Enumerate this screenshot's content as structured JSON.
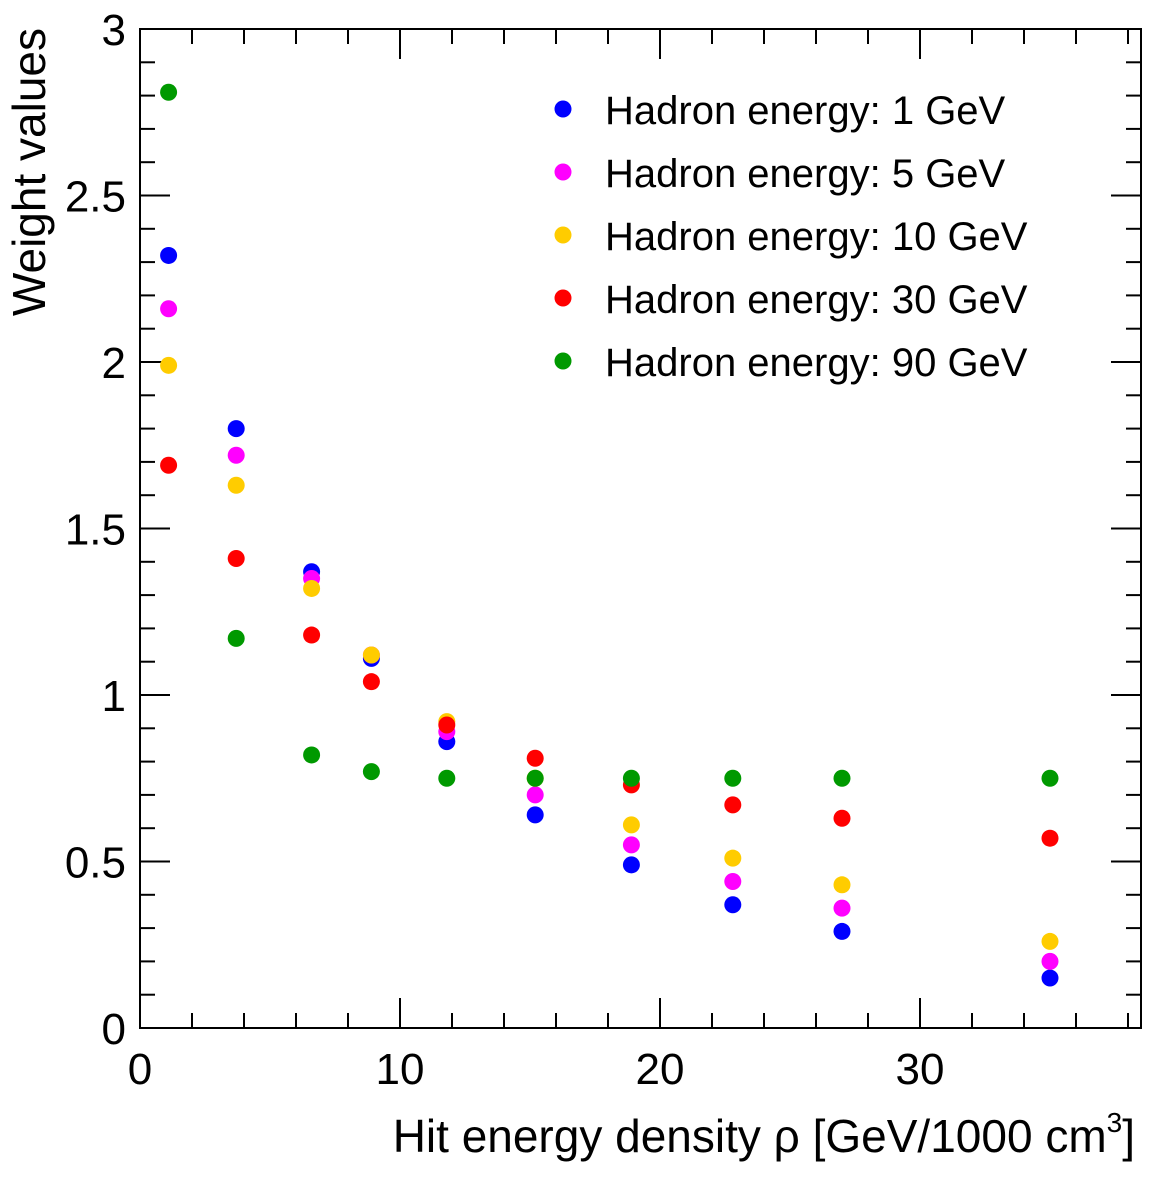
{
  "chart_data": {
    "type": "scatter",
    "title": "",
    "xlabel": "Hit energy density ρ [GeV/1000 cm",
    "xlabel_superscript": "3",
    "xlabel_suffix": "]",
    "ylabel": "Weight values",
    "xlim": [
      0,
      38.5
    ],
    "ylim": [
      0,
      3
    ],
    "x_major_ticks": [
      0,
      10,
      20,
      30
    ],
    "x_tick_labels": [
      "0",
      "10",
      "20",
      "30"
    ],
    "x_minor_step": 2,
    "y_major_ticks": [
      0,
      0.5,
      1,
      1.5,
      2,
      2.5,
      3
    ],
    "y_tick_labels": [
      "0",
      "0.5",
      "1",
      "1.5",
      "2",
      "2.5",
      "3"
    ],
    "y_minor_step": 0.1,
    "grid": false,
    "legend_position": "top-right",
    "x": [
      1.1,
      3.7,
      6.6,
      8.9,
      11.8,
      15.2,
      18.9,
      22.8,
      27.0,
      35.0
    ],
    "series": [
      {
        "name": "Hadron energy: 1 GeV",
        "color": "#0000ff",
        "values": [
          2.32,
          1.8,
          1.37,
          1.11,
          0.86,
          0.64,
          0.49,
          0.37,
          0.29,
          0.15
        ]
      },
      {
        "name": "Hadron energy: 5 GeV",
        "color": "#ff00ff",
        "values": [
          2.16,
          1.72,
          1.35,
          1.12,
          0.89,
          0.7,
          0.55,
          0.44,
          0.36,
          0.2
        ]
      },
      {
        "name": "Hadron energy: 10 GeV",
        "color": "#ffcc00",
        "values": [
          1.99,
          1.63,
          1.32,
          1.12,
          0.92,
          0.75,
          0.61,
          0.51,
          0.43,
          0.26
        ]
      },
      {
        "name": "Hadron energy: 30 GeV",
        "color": "#ff0000",
        "values": [
          1.69,
          1.41,
          1.18,
          1.04,
          0.91,
          0.81,
          0.73,
          0.67,
          0.63,
          0.57
        ]
      },
      {
        "name": "Hadron energy: 90 GeV",
        "color": "#009900",
        "values": [
          2.81,
          1.17,
          0.82,
          0.77,
          0.75,
          0.75,
          0.75,
          0.75,
          0.75,
          0.75
        ]
      }
    ]
  }
}
